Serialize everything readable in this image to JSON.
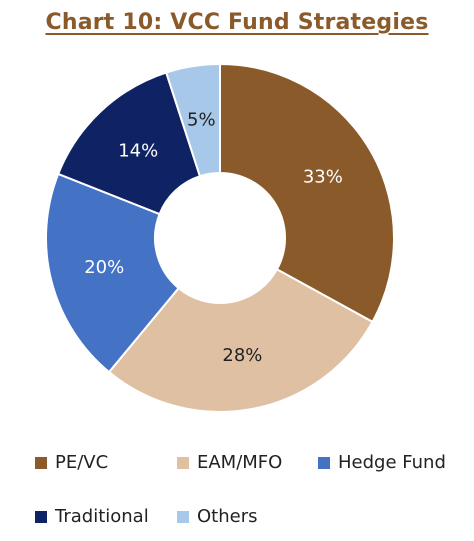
{
  "chart_data": {
    "type": "pie",
    "title": "Chart 10: VCC Fund Strategies",
    "series": [
      {
        "name": "PE/VC",
        "value": 33,
        "label": "33%",
        "color": "#8b5a2b"
      },
      {
        "name": "EAM/MFO",
        "value": 28,
        "label": "28%",
        "color": "#e0c0a3"
      },
      {
        "name": "Hedge Fund",
        "value": 20,
        "label": "20%",
        "color": "#4472c4"
      },
      {
        "name": "Traditional",
        "value": 14,
        "label": "14%",
        "color": "#0f2364"
      },
      {
        "name": "Others",
        "value": 5,
        "label": "5%",
        "color": "#a8c8ea"
      }
    ],
    "legend_position": "bottom"
  }
}
